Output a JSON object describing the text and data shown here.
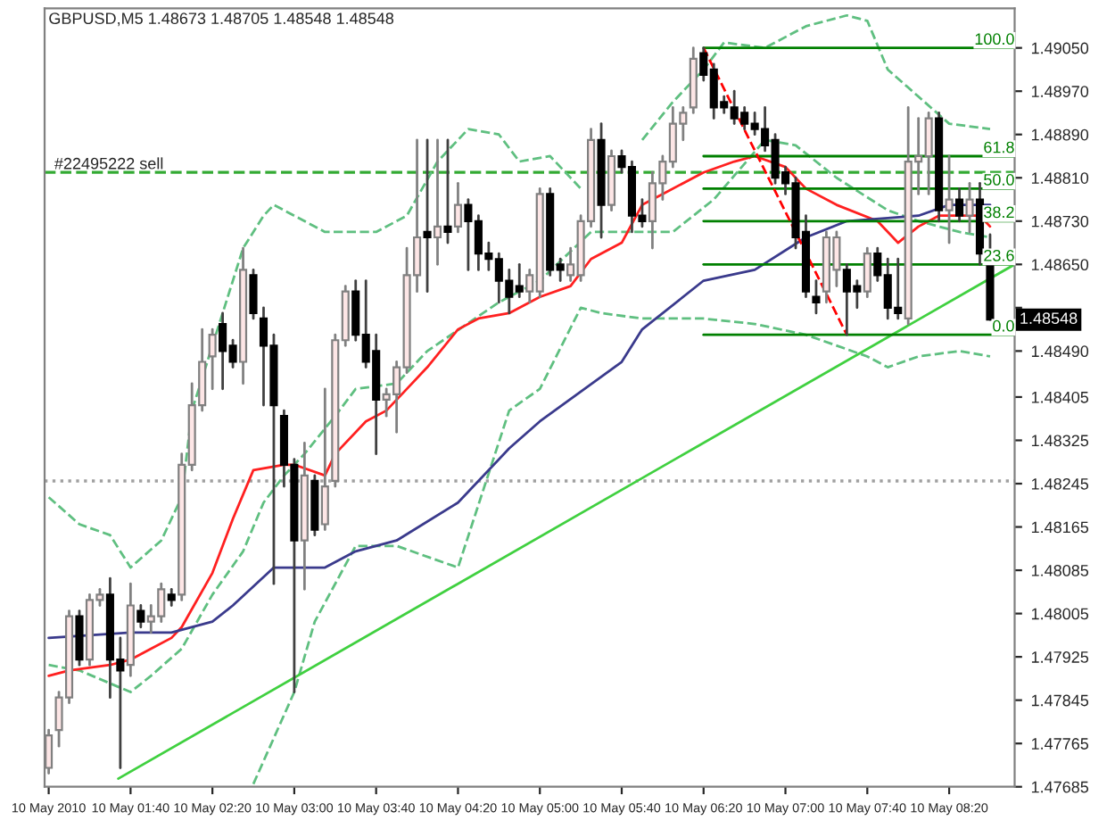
{
  "chart_data": {
    "type": "candlestick",
    "title": "GBPUSD,M5 1.48673 1.48705 1.48548 1.48548",
    "x": [
      "2010-05-10T01:00",
      "2010-05-10T01:05",
      "2010-05-10T01:10",
      "2010-05-10T01:15",
      "2010-05-10T01:20",
      "2010-05-10T01:25",
      "2010-05-10T01:30",
      "2010-05-10T01:35",
      "2010-05-10T01:40",
      "2010-05-10T01:45",
      "2010-05-10T01:50",
      "2010-05-10T01:55",
      "2010-05-10T02:00",
      "2010-05-10T02:05",
      "2010-05-10T02:10",
      "2010-05-10T02:15",
      "2010-05-10T02:20",
      "2010-05-10T02:25",
      "2010-05-10T02:30",
      "2010-05-10T02:35",
      "2010-05-10T02:40",
      "2010-05-10T02:45",
      "2010-05-10T02:50",
      "2010-05-10T02:55",
      "2010-05-10T03:00",
      "2010-05-10T03:05",
      "2010-05-10T03:10",
      "2010-05-10T03:15",
      "2010-05-10T03:20",
      "2010-05-10T03:25",
      "2010-05-10T03:30",
      "2010-05-10T03:35",
      "2010-05-10T03:40",
      "2010-05-10T03:45",
      "2010-05-10T03:50",
      "2010-05-10T03:55",
      "2010-05-10T04:00",
      "2010-05-10T04:05",
      "2010-05-10T04:10",
      "2010-05-10T04:15",
      "2010-05-10T04:20",
      "2010-05-10T04:25",
      "2010-05-10T04:30",
      "2010-05-10T04:35",
      "2010-05-10T04:40",
      "2010-05-10T04:45",
      "2010-05-10T04:50",
      "2010-05-10T04:55",
      "2010-05-10T05:00",
      "2010-05-10T05:05",
      "2010-05-10T05:10",
      "2010-05-10T05:15",
      "2010-05-10T05:20",
      "2010-05-10T05:25",
      "2010-05-10T05:30",
      "2010-05-10T05:35",
      "2010-05-10T05:40",
      "2010-05-10T05:45",
      "2010-05-10T05:50",
      "2010-05-10T05:55",
      "2010-05-10T06:00",
      "2010-05-10T06:05",
      "2010-05-10T06:10",
      "2010-05-10T06:15",
      "2010-05-10T06:20",
      "2010-05-10T06:25",
      "2010-05-10T06:30",
      "2010-05-10T06:35",
      "2010-05-10T06:40",
      "2010-05-10T06:45",
      "2010-05-10T06:50",
      "2010-05-10T06:55",
      "2010-05-10T07:00",
      "2010-05-10T07:05",
      "2010-05-10T07:10",
      "2010-05-10T07:15",
      "2010-05-10T07:20",
      "2010-05-10T07:25",
      "2010-05-10T07:30",
      "2010-05-10T07:35",
      "2010-05-10T07:40",
      "2010-05-10T07:45",
      "2010-05-10T07:50",
      "2010-05-10T07:55",
      "2010-05-10T08:00",
      "2010-05-10T08:05",
      "2010-05-10T08:10",
      "2010-05-10T08:15",
      "2010-05-10T08:20",
      "2010-05-10T08:25",
      "2010-05-10T08:30",
      "2010-05-10T08:35",
      "2010-05-10T08:40"
    ],
    "ohlc": [
      [
        1.4772,
        1.4779,
        1.4771,
        1.4778
      ],
      [
        1.4779,
        1.4786,
        1.4776,
        1.4785
      ],
      [
        1.4785,
        1.4801,
        1.4784,
        1.48
      ],
      [
        1.48,
        1.4801,
        1.4791,
        1.4792
      ],
      [
        1.4792,
        1.4804,
        1.4791,
        1.4803
      ],
      [
        1.4803,
        1.4805,
        1.4802,
        1.4804
      ],
      [
        1.4804,
        1.4807,
        1.4785,
        1.4792
      ],
      [
        1.4792,
        1.4796,
        1.4772,
        1.479
      ],
      [
        1.4791,
        1.4806,
        1.4789,
        1.4802
      ],
      [
        1.4801,
        1.4802,
        1.4798,
        1.4799
      ],
      [
        1.4799,
        1.4802,
        1.4797,
        1.48
      ],
      [
        1.48,
        1.4806,
        1.4799,
        1.4805
      ],
      [
        1.4804,
        1.4805,
        1.4802,
        1.4803
      ],
      [
        1.4804,
        1.483,
        1.4803,
        1.4828
      ],
      [
        1.4828,
        1.4843,
        1.4827,
        1.4839
      ],
      [
        1.4839,
        1.4853,
        1.4838,
        1.4847
      ],
      [
        1.4848,
        1.4853,
        1.4842,
        1.4852
      ],
      [
        1.4854,
        1.4856,
        1.4842,
        1.4849
      ],
      [
        1.485,
        1.4851,
        1.4846,
        1.4847
      ],
      [
        1.4847,
        1.4868,
        1.4843,
        1.4864
      ],
      [
        1.4863,
        1.4864,
        1.4855,
        1.4856
      ],
      [
        1.4855,
        1.4857,
        1.4839,
        1.485
      ],
      [
        1.485,
        1.4852,
        1.4806,
        1.4839
      ],
      [
        1.4837,
        1.4838,
        1.4824,
        1.4828
      ],
      [
        1.4828,
        1.4829,
        1.4786,
        1.4814
      ],
      [
        1.4814,
        1.4832,
        1.4805,
        1.4826
      ],
      [
        1.4825,
        1.4826,
        1.4815,
        1.4816
      ],
      [
        1.4817,
        1.4842,
        1.4816,
        1.4824
      ],
      [
        1.4825,
        1.4852,
        1.4824,
        1.4851
      ],
      [
        1.4851,
        1.4861,
        1.485,
        1.486
      ],
      [
        1.486,
        1.4862,
        1.4851,
        1.4852
      ],
      [
        1.4852,
        1.4862,
        1.4846,
        1.4847
      ],
      [
        1.4849,
        1.4852,
        1.483,
        1.484
      ],
      [
        1.484,
        1.4842,
        1.4837,
        1.4841
      ],
      [
        1.4841,
        1.4847,
        1.4834,
        1.4846
      ],
      [
        1.4846,
        1.4868,
        1.4845,
        1.4863
      ],
      [
        1.4863,
        1.4888,
        1.486,
        1.487
      ],
      [
        1.4871,
        1.4888,
        1.486,
        1.487
      ],
      [
        1.487,
        1.4888,
        1.4865,
        1.4872
      ],
      [
        1.4872,
        1.4888,
        1.4869,
        1.4871
      ],
      [
        1.4872,
        1.488,
        1.4871,
        1.4876
      ],
      [
        1.4876,
        1.4877,
        1.4864,
        1.4873
      ],
      [
        1.4873,
        1.4874,
        1.4864,
        1.4867
      ],
      [
        1.4867,
        1.4869,
        1.4864,
        1.4866
      ],
      [
        1.4866,
        1.4867,
        1.4858,
        1.4862
      ],
      [
        1.4862,
        1.4864,
        1.4856,
        1.4859
      ],
      [
        1.4861,
        1.4865,
        1.4859,
        1.486
      ],
      [
        1.486,
        1.4864,
        1.4858,
        1.4863
      ],
      [
        1.486,
        1.4879,
        1.4859,
        1.4878
      ],
      [
        1.4878,
        1.4879,
        1.4863,
        1.4864
      ],
      [
        1.4865,
        1.4866,
        1.4862,
        1.4864
      ],
      [
        1.4863,
        1.4868,
        1.4862,
        1.4865
      ],
      [
        1.4863,
        1.4874,
        1.4862,
        1.4873
      ],
      [
        1.4873,
        1.489,
        1.4872,
        1.4888
      ],
      [
        1.4888,
        1.4891,
        1.487,
        1.4876
      ],
      [
        1.4876,
        1.4886,
        1.4875,
        1.4885
      ],
      [
        1.4885,
        1.4886,
        1.4882,
        1.4883
      ],
      [
        1.4883,
        1.4884,
        1.4871,
        1.4874
      ],
      [
        1.4874,
        1.4877,
        1.4872,
        1.4873
      ],
      [
        1.4873,
        1.4882,
        1.4868,
        1.488
      ],
      [
        1.488,
        1.4885,
        1.4877,
        1.4884
      ],
      [
        1.4884,
        1.4894,
        1.4883,
        1.4891
      ],
      [
        1.4891,
        1.4894,
        1.4888,
        1.4893
      ],
      [
        1.4894,
        1.4905,
        1.4893,
        1.4903
      ],
      [
        1.4904,
        1.4905,
        1.4899,
        1.49
      ],
      [
        1.4901,
        1.4902,
        1.4892,
        1.4894
      ],
      [
        1.4895,
        1.4896,
        1.4893,
        1.4894
      ],
      [
        1.4894,
        1.4897,
        1.4891,
        1.4892
      ],
      [
        1.4893,
        1.4894,
        1.489,
        1.4891
      ],
      [
        1.4891,
        1.4893,
        1.4889,
        1.489
      ],
      [
        1.489,
        1.4894,
        1.4886,
        1.4887
      ],
      [
        1.4888,
        1.4889,
        1.488,
        1.4881
      ],
      [
        1.4882,
        1.4883,
        1.4878,
        1.488
      ],
      [
        1.488,
        1.4881,
        1.4868,
        1.487
      ],
      [
        1.4871,
        1.4874,
        1.4859,
        1.486
      ],
      [
        1.4859,
        1.4862,
        1.4856,
        1.4858
      ],
      [
        1.486,
        1.4871,
        1.4858,
        1.487
      ],
      [
        1.4864,
        1.4871,
        1.4861,
        1.487
      ],
      [
        1.4864,
        1.4865,
        1.4852,
        1.486
      ],
      [
        1.4861,
        1.4862,
        1.4857,
        1.486
      ],
      [
        1.486,
        1.4868,
        1.4859,
        1.4867
      ],
      [
        1.4867,
        1.4868,
        1.4862,
        1.4863
      ],
      [
        1.4863,
        1.4866,
        1.4855,
        1.4857
      ],
      [
        1.4857,
        1.4866,
        1.4855,
        1.4856
      ],
      [
        1.4855,
        1.4894,
        1.4854,
        1.4884
      ],
      [
        1.4884,
        1.4892,
        1.4878,
        1.4885
      ],
      [
        1.4885,
        1.4893,
        1.4878,
        1.4892
      ],
      [
        1.4892,
        1.4893,
        1.4873,
        1.4875
      ],
      [
        1.4875,
        1.4885,
        1.4869,
        1.4877
      ],
      [
        1.4877,
        1.4879,
        1.4873,
        1.4874
      ],
      [
        1.4874,
        1.488,
        1.4871,
        1.4877
      ],
      [
        1.4877,
        1.488,
        1.4865,
        1.4867
      ],
      [
        1.48673,
        1.48705,
        1.48548,
        1.48548
      ]
    ],
    "series": [
      {
        "type": "line",
        "color": "#5fbf80",
        "line_style": "dashed",
        "x": [
          "2010-05-10T01:00",
          "2010-05-10T01:15",
          "2010-05-10T01:30",
          "2010-05-10T01:40",
          "2010-05-10T01:55",
          "2010-05-10T02:05",
          "2010-05-10T02:10",
          "2010-05-10T02:25",
          "2010-05-10T02:35",
          "2010-05-10T02:45",
          "2010-05-10T02:50",
          "2010-05-10T03:05",
          "2010-05-10T03:15",
          "2010-05-10T03:40",
          "2010-05-10T03:55",
          "2010-05-10T04:10",
          "2010-05-10T04:25",
          "2010-05-10T04:40",
          "2010-05-10T04:50",
          "2010-05-10T05:05",
          "2010-05-10T05:20",
          "2010-05-10T05:30",
          "2010-05-10T05:50",
          "2010-05-10T06:05",
          "2010-05-10T06:20",
          "2010-05-10T06:30",
          "2010-05-10T06:50",
          "2010-05-10T07:10",
          "2010-05-10T07:30",
          "2010-05-10T07:40",
          "2010-05-10T07:50",
          "2010-05-10T08:05",
          "2010-05-10T08:20",
          "2010-05-10T08:40"
        ],
        "values": [
          1.4822,
          1.4817,
          1.4815,
          1.4809,
          1.4814,
          1.4822,
          1.4838,
          1.4856,
          1.4868,
          1.4874,
          1.4876,
          1.4873,
          1.4871,
          1.4871,
          1.4874,
          1.4884,
          1.489,
          1.4889,
          1.4884,
          1.4885,
          1.4879,
          null,
          1.4888,
          1.4895,
          1.4901,
          1.4906,
          1.4905,
          1.4909,
          1.4911,
          1.491,
          1.4901,
          1.4896,
          1.4891,
          1.489
        ]
      },
      {
        "type": "line",
        "color": "#5fbf80",
        "line_style": "dashed",
        "x": [
          "2010-05-10T01:00",
          "2010-05-10T01:15",
          "2010-05-10T01:40",
          "2010-05-10T01:50",
          "2010-05-10T02:05",
          "2010-05-10T02:20",
          "2010-05-10T02:35",
          "2010-05-10T02:45",
          "2010-05-10T02:55",
          "2010-05-10T03:05",
          "2010-05-10T03:20",
          "2010-05-10T03:30",
          "2010-05-10T03:50",
          "2010-05-10T04:05",
          "2010-05-10T04:40",
          "2010-05-10T05:00",
          "2010-05-10T05:25",
          "2010-05-10T06:05",
          "2010-05-10T06:25",
          "2010-05-10T06:50",
          "2010-05-10T07:05",
          "2010-05-10T07:25",
          "2010-05-10T07:50",
          "2010-05-10T08:05",
          "2010-05-10T08:25",
          "2010-05-10T08:40"
        ],
        "values": [
          1.4791,
          1.479,
          1.4786,
          1.4789,
          1.4794,
          1.4804,
          1.4812,
          1.4821,
          1.4826,
          1.483,
          1.4837,
          1.4842,
          1.4843,
          1.4849,
          1.4858,
          1.4862,
          1.4871,
          1.4871,
          1.4877,
          1.4888,
          1.4887,
          1.4881,
          1.4875,
          1.4873,
          1.4871,
          1.487
        ]
      },
      {
        "type": "line",
        "color": "#5fbf80",
        "line_style": "dashed",
        "x": [
          "2010-05-10T02:40",
          "2010-05-10T03:00",
          "2010-05-10T03:10",
          "2010-05-10T03:30",
          "2010-05-10T03:50",
          "2010-05-10T04:20",
          "2010-05-10T04:45",
          "2010-05-10T05:00",
          "2010-05-10T05:20",
          "2010-05-10T05:30",
          "2010-05-10T05:50",
          "2010-05-10T06:20",
          "2010-05-10T06:45",
          "2010-05-10T07:10",
          "2010-05-10T07:40",
          "2010-05-10T07:50",
          "2010-05-10T08:05",
          "2010-05-10T08:25",
          "2010-05-10T08:40"
        ],
        "values": [
          1.4769,
          1.4786,
          1.4799,
          1.4813,
          1.4813,
          1.4809,
          1.4838,
          1.4842,
          1.4857,
          1.4856,
          1.4855,
          1.4855,
          1.4854,
          1.4852,
          1.4848,
          1.4846,
          1.4848,
          1.4849,
          1.4848
        ]
      },
      {
        "type": "line",
        "color": "#ff2020",
        "line_style": "solid",
        "x": [
          "2010-05-10T01:00",
          "2010-05-10T01:10",
          "2010-05-10T01:30",
          "2010-05-10T01:40",
          "2010-05-10T01:50",
          "2010-05-10T02:00",
          "2010-05-10T02:05",
          "2010-05-10T02:20",
          "2010-05-10T02:30",
          "2010-05-10T02:40",
          "2010-05-10T02:55",
          "2010-05-10T03:00",
          "2010-05-10T03:15",
          "2010-05-10T03:20",
          "2010-05-10T03:35",
          "2010-05-10T03:45",
          "2010-05-10T03:55",
          "2010-05-10T04:05",
          "2010-05-10T04:20",
          "2010-05-10T04:30",
          "2010-05-10T04:45",
          "2010-05-10T05:00",
          "2010-05-10T05:15",
          "2010-05-10T05:25",
          "2010-05-10T05:40",
          "2010-05-10T05:50",
          "2010-05-10T06:00",
          "2010-05-10T06:20",
          "2010-05-10T06:35",
          "2010-05-10T06:45",
          "2010-05-10T07:00",
          "2010-05-10T07:10",
          "2010-05-10T07:25",
          "2010-05-10T07:45",
          "2010-05-10T07:55",
          "2010-05-10T08:05",
          "2010-05-10T08:15",
          "2010-05-10T08:25",
          "2010-05-10T08:35",
          "2010-05-10T08:40"
        ],
        "values": [
          1.4789,
          1.479,
          1.4791,
          1.4792,
          1.4794,
          1.4796,
          1.4798,
          1.4808,
          1.4818,
          1.4827,
          1.4828,
          1.4828,
          1.4826,
          1.483,
          1.4836,
          1.4838,
          1.4842,
          1.4846,
          1.4853,
          1.4855,
          1.4856,
          1.4859,
          1.4861,
          1.4866,
          1.4869,
          1.4876,
          1.4878,
          1.4882,
          1.4884,
          1.4885,
          1.4883,
          1.4879,
          1.4876,
          1.4873,
          1.4869,
          1.4872,
          1.4874,
          1.4874,
          1.4874,
          1.4872
        ]
      },
      {
        "type": "line",
        "color": "#3a3a8c",
        "line_style": "solid",
        "x": [
          "2010-05-10T01:00",
          "2010-05-10T01:40",
          "2010-05-10T02:00",
          "2010-05-10T02:20",
          "2010-05-10T02:30",
          "2010-05-10T02:50",
          "2010-05-10T03:15",
          "2010-05-10T03:30",
          "2010-05-10T03:50",
          "2010-05-10T04:20",
          "2010-05-10T04:45",
          "2010-05-10T05:00",
          "2010-05-10T05:40",
          "2010-05-10T05:50",
          "2010-05-10T06:20",
          "2010-05-10T06:45",
          "2010-05-10T07:10",
          "2010-05-10T07:30",
          "2010-05-10T08:05",
          "2010-05-10T08:20",
          "2010-05-10T08:40"
        ],
        "values": [
          1.4796,
          1.4797,
          1.4797,
          1.4799,
          1.4802,
          1.4809,
          1.4809,
          1.4812,
          1.4814,
          1.4821,
          1.4831,
          1.4836,
          1.4847,
          1.4853,
          1.4862,
          1.4864,
          1.487,
          1.4873,
          1.4874,
          1.4876,
          1.4876
        ]
      },
      {
        "type": "line",
        "color": "#40d040",
        "line_style": "solid",
        "x": [
          "2010-05-10T01:34",
          "2010-05-10T08:52"
        ],
        "values": [
          1.477,
          1.4865
        ]
      },
      {
        "type": "line",
        "name": "100.0",
        "color": "#008000",
        "line_style": "solid",
        "x": [
          "2010-05-10T06:20",
          "2010-05-10T08:52"
        ],
        "values": [
          1.4905,
          1.4905
        ]
      },
      {
        "type": "line",
        "name": "61.8",
        "color": "#008000",
        "line_style": "solid",
        "x": [
          "2010-05-10T06:20",
          "2010-05-10T08:52"
        ],
        "values": [
          1.4885,
          1.4885
        ]
      },
      {
        "type": "line",
        "name": "50.0",
        "color": "#008000",
        "line_style": "solid",
        "x": [
          "2010-05-10T06:20",
          "2010-05-10T08:52"
        ],
        "values": [
          1.4879,
          1.4879
        ]
      },
      {
        "type": "line",
        "name": "38.2",
        "color": "#008000",
        "line_style": "solid",
        "x": [
          "2010-05-10T06:20",
          "2010-05-10T08:52"
        ],
        "values": [
          1.4873,
          1.4873
        ]
      },
      {
        "type": "line",
        "name": "23.6",
        "color": "#008000",
        "line_style": "solid",
        "x": [
          "2010-05-10T06:20",
          "2010-05-10T08:52"
        ],
        "values": [
          1.4865,
          1.4865
        ]
      },
      {
        "type": "line",
        "name": "0.0",
        "color": "#008000",
        "line_style": "solid",
        "x": [
          "2010-05-10T06:20",
          "2010-05-10T08:52"
        ],
        "values": [
          1.4852,
          1.4852
        ]
      },
      {
        "type": "line",
        "color": "#ff0000",
        "line_style": "dashed",
        "x": [
          "2010-05-10T06:20",
          "2010-05-10T07:30"
        ],
        "values": [
          1.4905,
          1.4852
        ]
      }
    ],
    "ref_lines": [
      {
        "axis": "y",
        "value": 1.4882,
        "label": "#22495222 sell",
        "color": "#33aa33",
        "line_style": "dashed"
      },
      {
        "axis": "y",
        "value": 1.4825,
        "color": "#a0a0a0",
        "line_style": "dotted"
      }
    ],
    "annotations": [
      {
        "text": "1.48548",
        "x": "2010-05-10T08:40",
        "y": 1.48548
      }
    ],
    "xlim": [
      "2010-05-10T00:58",
      "2010-05-10T08:52"
    ],
    "xticks": [
      {
        "value": "2010-05-10T01:00",
        "label": "10 May 2010"
      },
      {
        "value": "2010-05-10T01:40",
        "label": "10 May 01:40"
      },
      {
        "value": "2010-05-10T02:20",
        "label": "10 May 02:20"
      },
      {
        "value": "2010-05-10T03:00",
        "label": "10 May 03:00"
      },
      {
        "value": "2010-05-10T03:40",
        "label": "10 May 03:40"
      },
      {
        "value": "2010-05-10T04:20",
        "label": "10 May 04:20"
      },
      {
        "value": "2010-05-10T05:00",
        "label": "10 May 05:00"
      },
      {
        "value": "2010-05-10T05:40",
        "label": "10 May 05:40"
      },
      {
        "value": "2010-05-10T06:20",
        "label": "10 May 06:20"
      },
      {
        "value": "2010-05-10T07:00",
        "label": "10 May 07:00"
      },
      {
        "value": "2010-05-10T07:40",
        "label": "10 May 07:40"
      },
      {
        "value": "2010-05-10T08:20",
        "label": "10 May 08:20"
      }
    ],
    "ylim": [
      1.47685,
      1.49123
    ],
    "yticks": [
      1.47685,
      1.47765,
      1.47845,
      1.47925,
      1.48005,
      1.48085,
      1.48165,
      1.48245,
      1.48325,
      1.48405,
      {
        "value": 1.4849,
        "label": "1.48490"
      },
      {
        "value": 1.4857,
        "label": null
      },
      {
        "value": 1.4865,
        "label": "1.48650"
      },
      {
        "value": 1.4873,
        "label": "1.48730"
      },
      {
        "value": 1.4881,
        "label": "1.48810"
      },
      {
        "value": 1.4889,
        "label": "1.48890"
      },
      {
        "value": 1.4897,
        "label": "1.48970"
      },
      {
        "value": 1.4905,
        "label": "1.49050"
      }
    ],
    "grid": false,
    "legend": false
  }
}
